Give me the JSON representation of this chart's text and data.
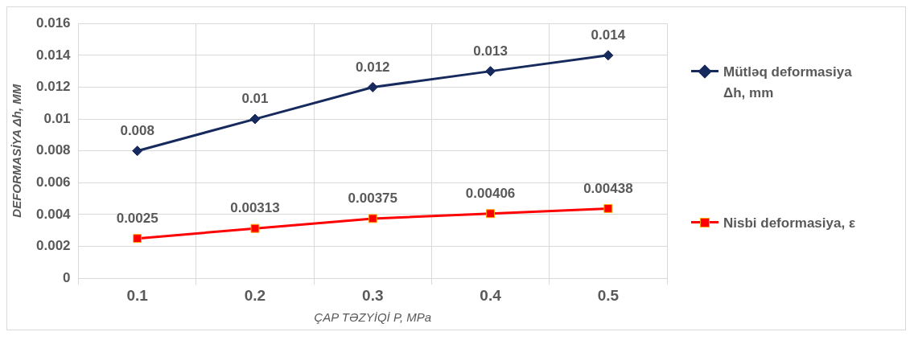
{
  "chart_data": {
    "type": "line",
    "xlabel": "ÇAP TƏZYİQİ P, MPa",
    "ylabel": "DEFORMASİYA Δh, MM",
    "categories": [
      "0.1",
      "0.2",
      "0.3",
      "0.4",
      "0.5"
    ],
    "series": [
      {
        "name": "Mütləq deformasiya Δh, mm",
        "color": "#172a5e",
        "marker": "diamond",
        "values": [
          0.008,
          0.01,
          0.012,
          0.013,
          0.014
        ]
      },
      {
        "name": "Nisbi deformasiya, ε",
        "color": "#ff0000",
        "marker": "square",
        "values": [
          0.0025,
          0.00313,
          0.00375,
          0.00406,
          0.00438
        ]
      }
    ],
    "ylim": [
      0,
      0.016
    ],
    "yticks": [
      0,
      0.002,
      0.004,
      0.006,
      0.008,
      0.01,
      0.012,
      0.014,
      0.016
    ],
    "grid": true,
    "legend": "right",
    "data_labels": true,
    "line_style": "solid"
  }
}
